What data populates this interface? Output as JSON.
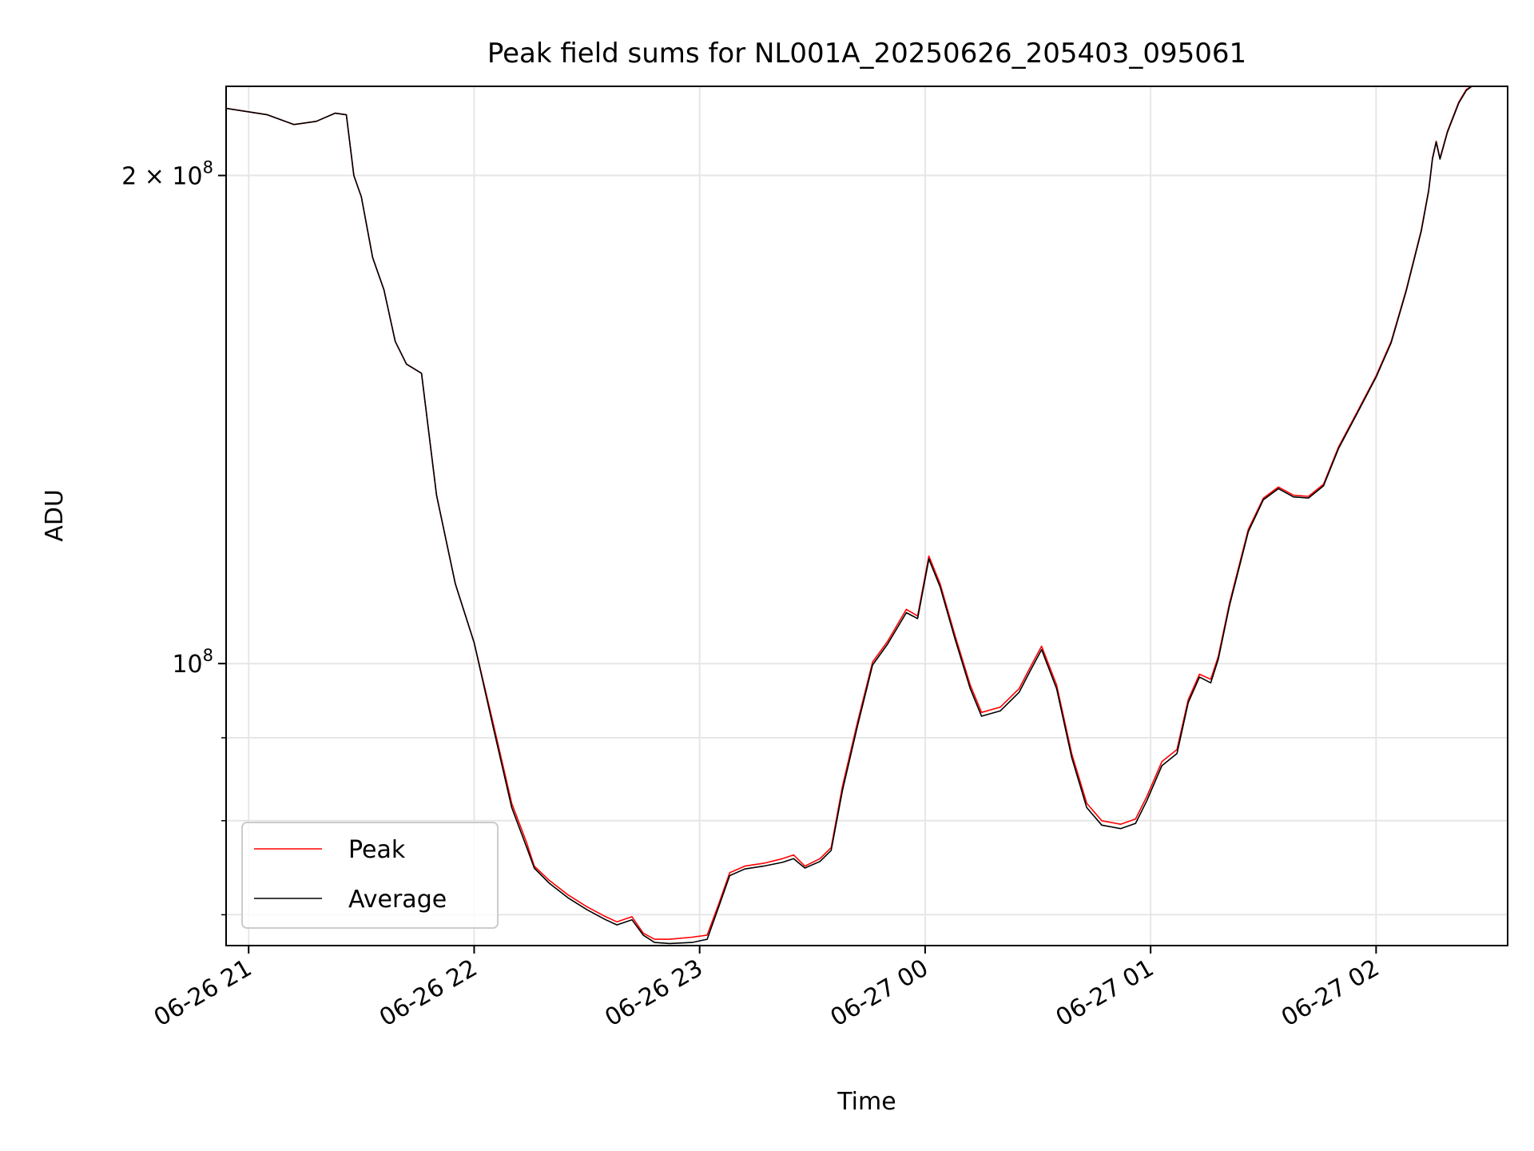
{
  "chart_data": {
    "type": "line",
    "title": "Peak field sums for NL001A_20250626_205403_095061",
    "xlabel": "Time",
    "ylabel": "ADU",
    "yscale": "log",
    "grid": true,
    "legend_position": "lower-left",
    "xlim": [
      "2025-06-26 20:54",
      "2025-06-27 02:35"
    ],
    "ylim": [
      67000000,
      227000000
    ],
    "x_ticks": [
      {
        "t": "2025-06-26 21:00",
        "label": "06-26 21"
      },
      {
        "t": "2025-06-26 22:00",
        "label": "06-26 22"
      },
      {
        "t": "2025-06-26 23:00",
        "label": "06-26 23"
      },
      {
        "t": "2025-06-27 00:00",
        "label": "06-27 00"
      },
      {
        "t": "2025-06-27 01:00",
        "label": "06-27 01"
      },
      {
        "t": "2025-06-27 02:00",
        "label": "06-27 02"
      }
    ],
    "y_major_ticks": [
      {
        "v": 100000000,
        "label": "10",
        "exp": "8"
      },
      {
        "v": 200000000,
        "label": "2 × 10",
        "exp": "8"
      }
    ],
    "y_minor_ticks": [
      70000000,
      80000000,
      90000000
    ],
    "series": [
      {
        "name": "Peak",
        "color": "#ff0000",
        "points": [
          [
            "2025-06-26 20:54",
            220000000
          ],
          [
            "2025-06-26 21:05",
            218000000
          ],
          [
            "2025-06-26 21:12",
            215000000
          ],
          [
            "2025-06-26 21:18",
            216000000
          ],
          [
            "2025-06-26 21:23",
            218500000
          ],
          [
            "2025-06-26 21:26",
            218000000
          ],
          [
            "2025-06-26 21:28",
            200000000
          ],
          [
            "2025-06-26 21:30",
            194000000
          ],
          [
            "2025-06-26 21:33",
            178000000
          ],
          [
            "2025-06-26 21:36",
            170000000
          ],
          [
            "2025-06-26 21:39",
            158000000
          ],
          [
            "2025-06-26 21:42",
            153000000
          ],
          [
            "2025-06-26 21:44",
            152000000
          ],
          [
            "2025-06-26 21:46",
            151000000
          ],
          [
            "2025-06-26 21:50",
            127000000
          ],
          [
            "2025-06-26 21:55",
            112000000
          ],
          [
            "2025-06-26 22:00",
            103000000
          ],
          [
            "2025-06-26 22:05",
            92000000
          ],
          [
            "2025-06-26 22:10",
            82000000
          ],
          [
            "2025-06-26 22:14",
            77500000
          ],
          [
            "2025-06-26 22:16",
            75000000
          ],
          [
            "2025-06-26 22:20",
            73500000
          ],
          [
            "2025-06-26 22:25",
            72000000
          ],
          [
            "2025-06-26 22:30",
            70800000
          ],
          [
            "2025-06-26 22:35",
            69800000
          ],
          [
            "2025-06-26 22:38",
            69300000
          ],
          [
            "2025-06-26 22:42",
            69800000
          ],
          [
            "2025-06-26 22:45",
            68200000
          ],
          [
            "2025-06-26 22:48",
            67600000
          ],
          [
            "2025-06-26 22:52",
            67600000
          ],
          [
            "2025-06-26 22:58",
            67800000
          ],
          [
            "2025-06-26 23:02",
            68000000
          ],
          [
            "2025-06-26 23:05",
            71000000
          ],
          [
            "2025-06-26 23:08",
            74300000
          ],
          [
            "2025-06-26 23:12",
            75000000
          ],
          [
            "2025-06-26 23:17",
            75300000
          ],
          [
            "2025-06-26 23:22",
            75800000
          ],
          [
            "2025-06-26 23:25",
            76200000
          ],
          [
            "2025-06-26 23:28",
            75000000
          ],
          [
            "2025-06-26 23:32",
            75800000
          ],
          [
            "2025-06-26 23:35",
            77000000
          ],
          [
            "2025-06-26 23:38",
            84000000
          ],
          [
            "2025-06-26 23:42",
            92000000
          ],
          [
            "2025-06-26 23:46",
            100200000
          ],
          [
            "2025-06-26 23:50",
            103200000
          ],
          [
            "2025-06-26 23:55",
            108000000
          ],
          [
            "2025-06-26 23:58",
            107000000
          ],
          [
            "2025-06-27 00:01",
            116500000
          ],
          [
            "2025-06-27 00:04",
            112000000
          ],
          [
            "2025-06-27 00:08",
            104000000
          ],
          [
            "2025-06-27 00:12",
            97000000
          ],
          [
            "2025-06-27 00:15",
            93300000
          ],
          [
            "2025-06-27 00:20",
            94000000
          ],
          [
            "2025-06-27 00:25",
            96500000
          ],
          [
            "2025-06-27 00:28",
            99500000
          ],
          [
            "2025-06-27 00:31",
            102500000
          ],
          [
            "2025-06-27 00:35",
            97000000
          ],
          [
            "2025-06-27 00:39",
            88000000
          ],
          [
            "2025-06-27 00:43",
            82000000
          ],
          [
            "2025-06-27 00:47",
            80000000
          ],
          [
            "2025-06-27 00:52",
            79600000
          ],
          [
            "2025-06-27 00:56",
            80200000
          ],
          [
            "2025-06-27 00:59",
            82800000
          ],
          [
            "2025-06-27 01:03",
            87000000
          ],
          [
            "2025-06-27 01:07",
            88500000
          ],
          [
            "2025-06-27 01:10",
            95000000
          ],
          [
            "2025-06-27 01:13",
            98500000
          ],
          [
            "2025-06-27 01:16",
            97800000
          ],
          [
            "2025-06-27 01:18",
            101000000
          ],
          [
            "2025-06-27 01:21",
            109000000
          ],
          [
            "2025-06-27 01:26",
            121000000
          ],
          [
            "2025-06-27 01:30",
            126500000
          ],
          [
            "2025-06-27 01:34",
            128500000
          ],
          [
            "2025-06-27 01:38",
            127000000
          ],
          [
            "2025-06-27 01:42",
            126800000
          ],
          [
            "2025-06-27 01:46",
            129000000
          ],
          [
            "2025-06-27 01:50",
            136000000
          ],
          [
            "2025-06-27 01:55",
            143000000
          ],
          [
            "2025-06-27 02:00",
            150500000
          ],
          [
            "2025-06-27 02:04",
            158000000
          ],
          [
            "2025-06-27 02:08",
            170000000
          ],
          [
            "2025-06-27 02:12",
            185000000
          ],
          [
            "2025-06-27 02:14",
            196000000
          ],
          [
            "2025-06-27 02:15",
            205000000
          ],
          [
            "2025-06-27 02:16",
            210000000
          ],
          [
            "2025-06-27 02:17",
            205000000
          ],
          [
            "2025-06-27 02:19",
            213000000
          ],
          [
            "2025-06-27 02:22",
            222000000
          ],
          [
            "2025-06-27 02:24",
            226000000
          ],
          [
            "2025-06-27 02:26",
            227500000
          ]
        ]
      },
      {
        "name": "Average",
        "color": "#000000",
        "points": [
          [
            "2025-06-26 20:54",
            220000000
          ],
          [
            "2025-06-26 21:05",
            218000000
          ],
          [
            "2025-06-26 21:12",
            215000000
          ],
          [
            "2025-06-26 21:18",
            216000000
          ],
          [
            "2025-06-26 21:23",
            218500000
          ],
          [
            "2025-06-26 21:26",
            218000000
          ],
          [
            "2025-06-26 21:28",
            200000000
          ],
          [
            "2025-06-26 21:30",
            194000000
          ],
          [
            "2025-06-26 21:33",
            178000000
          ],
          [
            "2025-06-26 21:36",
            170000000
          ],
          [
            "2025-06-26 21:39",
            158000000
          ],
          [
            "2025-06-26 21:42",
            153000000
          ],
          [
            "2025-06-26 21:44",
            152000000
          ],
          [
            "2025-06-26 21:46",
            151000000
          ],
          [
            "2025-06-26 21:50",
            127000000
          ],
          [
            "2025-06-26 21:55",
            112000000
          ],
          [
            "2025-06-26 22:00",
            103000000
          ],
          [
            "2025-06-26 22:05",
            91500000
          ],
          [
            "2025-06-26 22:10",
            81500000
          ],
          [
            "2025-06-26 22:14",
            77000000
          ],
          [
            "2025-06-26 22:16",
            74800000
          ],
          [
            "2025-06-26 22:20",
            73200000
          ],
          [
            "2025-06-26 22:25",
            71700000
          ],
          [
            "2025-06-26 22:30",
            70500000
          ],
          [
            "2025-06-26 22:35",
            69500000
          ],
          [
            "2025-06-26 22:38",
            69000000
          ],
          [
            "2025-06-26 22:42",
            69500000
          ],
          [
            "2025-06-26 22:45",
            68000000
          ],
          [
            "2025-06-26 22:48",
            67300000
          ],
          [
            "2025-06-26 22:52",
            67200000
          ],
          [
            "2025-06-26 22:58",
            67300000
          ],
          [
            "2025-06-26 23:02",
            67600000
          ],
          [
            "2025-06-26 23:05",
            70700000
          ],
          [
            "2025-06-26 23:08",
            74000000
          ],
          [
            "2025-06-26 23:12",
            74700000
          ],
          [
            "2025-06-26 23:17",
            75000000
          ],
          [
            "2025-06-26 23:22",
            75400000
          ],
          [
            "2025-06-26 23:25",
            75800000
          ],
          [
            "2025-06-26 23:28",
            74800000
          ],
          [
            "2025-06-26 23:32",
            75500000
          ],
          [
            "2025-06-26 23:35",
            76700000
          ],
          [
            "2025-06-26 23:38",
            83500000
          ],
          [
            "2025-06-26 23:42",
            91500000
          ],
          [
            "2025-06-26 23:46",
            99800000
          ],
          [
            "2025-06-26 23:50",
            102800000
          ],
          [
            "2025-06-26 23:55",
            107500000
          ],
          [
            "2025-06-26 23:58",
            106600000
          ],
          [
            "2025-06-27 00:01",
            116000000
          ],
          [
            "2025-06-27 00:04",
            111500000
          ],
          [
            "2025-06-27 00:08",
            103500000
          ],
          [
            "2025-06-27 00:12",
            96500000
          ],
          [
            "2025-06-27 00:15",
            92800000
          ],
          [
            "2025-06-27 00:20",
            93500000
          ],
          [
            "2025-06-27 00:25",
            96000000
          ],
          [
            "2025-06-27 00:28",
            99000000
          ],
          [
            "2025-06-27 00:31",
            102000000
          ],
          [
            "2025-06-27 00:35",
            96500000
          ],
          [
            "2025-06-27 00:39",
            87500000
          ],
          [
            "2025-06-27 00:43",
            81500000
          ],
          [
            "2025-06-27 00:47",
            79500000
          ],
          [
            "2025-06-27 00:52",
            79100000
          ],
          [
            "2025-06-27 00:56",
            79700000
          ],
          [
            "2025-06-27 00:59",
            82300000
          ],
          [
            "2025-06-27 01:03",
            86500000
          ],
          [
            "2025-06-27 01:07",
            88000000
          ],
          [
            "2025-06-27 01:10",
            94600000
          ],
          [
            "2025-06-27 01:13",
            98100000
          ],
          [
            "2025-06-27 01:16",
            97300000
          ],
          [
            "2025-06-27 01:18",
            100600000
          ],
          [
            "2025-06-27 01:21",
            108600000
          ],
          [
            "2025-06-27 01:26",
            120600000
          ],
          [
            "2025-06-27 01:30",
            126200000
          ],
          [
            "2025-06-27 01:34",
            128200000
          ],
          [
            "2025-06-27 01:38",
            126700000
          ],
          [
            "2025-06-27 01:42",
            126500000
          ],
          [
            "2025-06-27 01:46",
            128700000
          ],
          [
            "2025-06-27 01:50",
            135700000
          ],
          [
            "2025-06-27 01:55",
            142700000
          ],
          [
            "2025-06-27 02:00",
            150200000
          ],
          [
            "2025-06-27 02:04",
            157700000
          ],
          [
            "2025-06-27 02:08",
            169700000
          ],
          [
            "2025-06-27 02:12",
            184700000
          ],
          [
            "2025-06-27 02:14",
            195700000
          ],
          [
            "2025-06-27 02:15",
            204700000
          ],
          [
            "2025-06-27 02:16",
            209700000
          ],
          [
            "2025-06-27 02:17",
            204700000
          ],
          [
            "2025-06-27 02:19",
            212700000
          ],
          [
            "2025-06-27 02:22",
            221700000
          ],
          [
            "2025-06-27 02:24",
            225700000
          ],
          [
            "2025-06-27 02:26",
            227500000
          ]
        ]
      }
    ]
  }
}
